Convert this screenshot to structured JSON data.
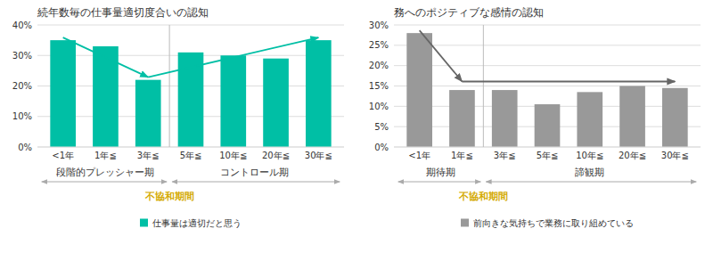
{
  "chart_data": [
    {
      "type": "bar",
      "title": "続年数毎の仕事量適切度合いの認知",
      "categories": [
        "<1年",
        "1年≦",
        "3年≦",
        "5年≦",
        "10年≦",
        "20年≦",
        "30年≦"
      ],
      "series": [
        {
          "name": "仕事量は適切だと思う",
          "color": "#00BFA5",
          "values": [
            0.35,
            0.33,
            0.22,
            0.31,
            0.3,
            0.29,
            0.35
          ]
        }
      ],
      "ylim": [
        0,
        0.4
      ],
      "yticks": [
        {
          "value": 0,
          "label": "0%"
        },
        {
          "value": 0.1,
          "label": "10%"
        },
        {
          "value": 0.2,
          "label": "20%"
        },
        {
          "value": 0.3,
          "label": "30%"
        },
        {
          "value": 0.4,
          "label": "40%"
        }
      ],
      "grid": true,
      "legend": "bottom",
      "annotations": [
        {
          "text": "段階的プレッシャー期"
        },
        {
          "text": "コントロール期"
        },
        {
          "text": "不協和期間",
          "x": 2.5
        }
      ]
    },
    {
      "type": "bar",
      "title": "務へのポジティブな感情の認知",
      "categories": [
        "<1年",
        "1年≦",
        "3年≦",
        "5年≦",
        "10年≦",
        "20年≦",
        "30年≦"
      ],
      "series": [
        {
          "name": "前向きな気持ちで業務に取り組めている",
          "color": "#999999",
          "values": [
            0.28,
            0.14,
            0.14,
            0.105,
            0.135,
            0.15,
            0.145
          ]
        }
      ],
      "ylim": [
        0,
        0.3
      ],
      "yticks": [
        {
          "value": 0,
          "label": "0%"
        },
        {
          "value": 0.05,
          "label": "5%"
        },
        {
          "value": 0.1,
          "label": "10%"
        },
        {
          "value": 0.15,
          "label": "15%"
        },
        {
          "value": 0.2,
          "label": "20%"
        },
        {
          "value": 0.25,
          "label": "25%"
        },
        {
          "value": 0.3,
          "label": "30%"
        }
      ],
      "grid": true,
      "legend": "bottom",
      "annotations": [
        {
          "text": "期待期"
        },
        {
          "text": "諦観期"
        },
        {
          "text": "不協和期間",
          "x": 1.5
        }
      ]
    }
  ]
}
